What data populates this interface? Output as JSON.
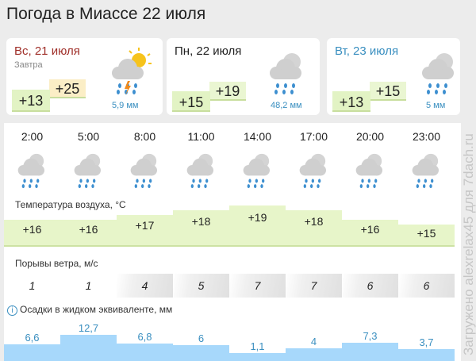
{
  "title": "Погода в Миассе 22 июля",
  "days": [
    {
      "date": "Вс, 21 июля",
      "sub": "Завтра",
      "min": "+13",
      "max": "+25",
      "precip": "5,9 мм",
      "icon": "partly-sunny-thunderstorm-icon",
      "date_color": "#a0302a"
    },
    {
      "date": "Пн, 22 июля",
      "sub": "",
      "min": "+15",
      "max": "+19",
      "precip": "48,2 мм",
      "icon": "cloud-heavy-rain-icon",
      "date_color": "#222222"
    },
    {
      "date": "Вт, 23 июля",
      "sub": "",
      "min": "+13",
      "max": "+15",
      "precip": "5 мм",
      "icon": "cloud-rain-icon",
      "date_color": "#3a8fc0"
    }
  ],
  "hourly": {
    "times": [
      "2:00",
      "5:00",
      "8:00",
      "11:00",
      "14:00",
      "17:00",
      "20:00",
      "23:00"
    ],
    "temp_label": "Температура воздуха, °C",
    "temps": [
      "+16",
      "+16",
      "+17",
      "+18",
      "+19",
      "+18",
      "+16",
      "+15"
    ],
    "temp_values": [
      16,
      16,
      17,
      18,
      19,
      18,
      16,
      15
    ],
    "wind_label": "Порывы ветра, м/с",
    "wind": [
      "1",
      "1",
      "4",
      "5",
      "7",
      "7",
      "6",
      "6"
    ],
    "precip_label": "Осадки в жидком эквиваленте, мм",
    "precip": [
      "6,6",
      "12,7",
      "6,8",
      "6",
      "1,1",
      "4",
      "7,3",
      "3,7"
    ],
    "precip_values": [
      6.6,
      12.7,
      6.8,
      6,
      1.1,
      4,
      7.3,
      3.7
    ]
  },
  "watermark": "Загружено alexrelax45 для 7dach.ru"
}
